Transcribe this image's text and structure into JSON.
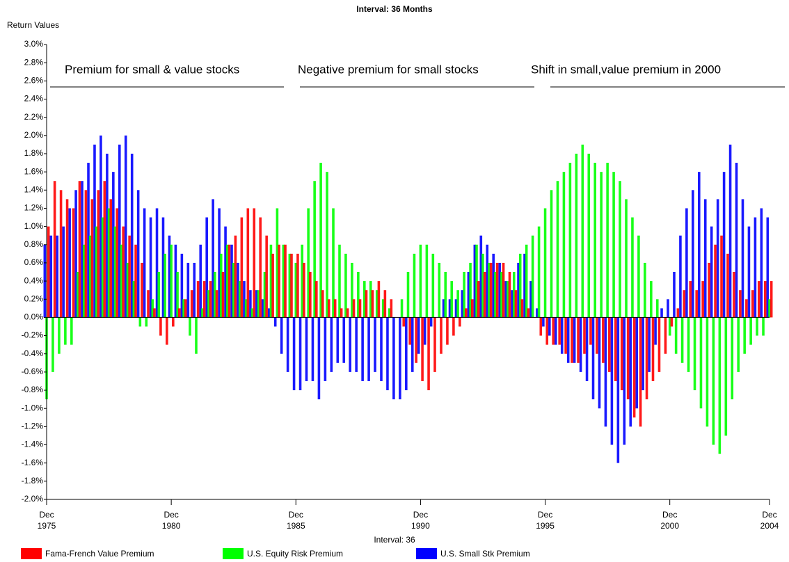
{
  "chart_data": {
    "type": "bar",
    "title": "Interval: 36 Months",
    "ylabel": "Return Values",
    "xlabel": "Interval: 36",
    "annotations": [
      "Premium for small & value stocks",
      "Negative premium for small stocks",
      "Shift in small,value premium in 2000"
    ],
    "x": [
      "1975-12",
      "1976-03",
      "1976-06",
      "1976-09",
      "1976-12",
      "1977-03",
      "1977-06",
      "1977-09",
      "1977-12",
      "1978-03",
      "1978-06",
      "1978-09",
      "1978-12",
      "1979-03",
      "1979-06",
      "1979-09",
      "1979-12",
      "1980-03",
      "1980-06",
      "1980-09",
      "1980-12",
      "1981-03",
      "1981-06",
      "1981-09",
      "1981-12",
      "1982-03",
      "1982-06",
      "1982-09",
      "1982-12",
      "1983-03",
      "1983-06",
      "1983-09",
      "1983-12",
      "1984-03",
      "1984-06",
      "1984-09",
      "1984-12",
      "1985-03",
      "1985-06",
      "1985-09",
      "1985-12",
      "1986-03",
      "1986-06",
      "1986-09",
      "1986-12",
      "1987-03",
      "1987-06",
      "1987-09",
      "1987-12",
      "1988-03",
      "1988-06",
      "1988-09",
      "1988-12",
      "1989-03",
      "1989-06",
      "1989-09",
      "1989-12",
      "1990-03",
      "1990-06",
      "1990-09",
      "1990-12",
      "1991-03",
      "1991-06",
      "1991-09",
      "1991-12",
      "1992-03",
      "1992-06",
      "1992-09",
      "1992-12",
      "1993-03",
      "1993-06",
      "1993-09",
      "1993-12",
      "1994-03",
      "1994-06",
      "1994-09",
      "1994-12",
      "1995-03",
      "1995-06",
      "1995-09",
      "1995-12",
      "1996-03",
      "1996-06",
      "1996-09",
      "1996-12",
      "1997-03",
      "1997-06",
      "1997-09",
      "1997-12",
      "1998-03",
      "1998-06",
      "1998-09",
      "1998-12",
      "1999-03",
      "1999-06",
      "1999-09",
      "1999-12",
      "2000-03",
      "2000-06",
      "2000-09",
      "2000-12",
      "2001-03",
      "2001-06",
      "2001-09",
      "2001-12",
      "2002-03",
      "2002-06",
      "2002-09",
      "2002-12",
      "2003-03",
      "2003-06",
      "2003-09",
      "2003-12",
      "2004-03",
      "2004-06",
      "2004-09",
      "2004-12"
    ],
    "series": [
      {
        "name": "U.S. Small Stk Premium",
        "color": "#0000ff",
        "values": [
          0.8,
          0.9,
          0.9,
          1.0,
          1.2,
          1.4,
          1.5,
          1.7,
          1.9,
          2.0,
          1.8,
          1.6,
          1.9,
          2.0,
          1.8,
          1.4,
          1.2,
          1.1,
          1.2,
          1.1,
          0.9,
          0.8,
          0.7,
          0.6,
          0.6,
          0.8,
          1.1,
          1.3,
          1.2,
          1.0,
          0.8,
          0.6,
          0.4,
          0.3,
          0.3,
          0.2,
          0.1,
          -0.1,
          -0.4,
          -0.6,
          -0.8,
          -0.8,
          -0.7,
          -0.7,
          -0.9,
          -0.7,
          -0.6,
          -0.5,
          -0.5,
          -0.6,
          -0.6,
          -0.7,
          -0.7,
          -0.6,
          -0.7,
          -0.8,
          -0.9,
          -0.9,
          -0.8,
          -0.6,
          -0.4,
          -0.3,
          -0.1,
          0.0,
          0.2,
          0.2,
          0.2,
          0.3,
          0.5,
          0.8,
          0.9,
          0.8,
          0.7,
          0.6,
          0.4,
          0.3,
          0.6,
          0.7,
          0.4,
          0.1,
          -0.1,
          -0.2,
          -0.3,
          -0.4,
          -0.5,
          -0.5,
          -0.6,
          -0.7,
          -0.9,
          -1.0,
          -1.2,
          -1.4,
          -1.6,
          -1.4,
          -1.2,
          -1.0,
          -0.8,
          -0.6,
          -0.3,
          0.1,
          0.2,
          0.5,
          0.9,
          1.2,
          1.4,
          1.6,
          1.3,
          1.0,
          1.3,
          1.6,
          1.9,
          1.7,
          1.3,
          1.0,
          1.1,
          1.2,
          1.1
        ]
      },
      {
        "name": "U.S. Equity Risk Premium",
        "color": "#00ff00",
        "values": [
          -0.9,
          -0.6,
          -0.4,
          -0.3,
          -0.3,
          0.5,
          0.8,
          0.9,
          1.0,
          1.1,
          1.2,
          1.0,
          0.8,
          0.6,
          0.4,
          -0.1,
          -0.1,
          0.2,
          0.5,
          0.7,
          0.8,
          0.5,
          0.2,
          -0.2,
          -0.4,
          0.1,
          0.3,
          0.5,
          0.7,
          0.8,
          0.6,
          0.4,
          0.2,
          0.1,
          0.3,
          0.5,
          0.8,
          1.2,
          0.8,
          0.7,
          0.6,
          0.8,
          1.2,
          1.5,
          1.7,
          1.6,
          1.2,
          0.8,
          0.7,
          0.6,
          0.5,
          0.4,
          0.4,
          0.3,
          0.2,
          0.1,
          0.0,
          0.2,
          0.5,
          0.7,
          0.8,
          0.8,
          0.7,
          0.6,
          0.5,
          0.4,
          0.3,
          0.5,
          0.6,
          0.8,
          0.7,
          0.6,
          0.5,
          0.5,
          0.4,
          0.5,
          0.7,
          0.8,
          0.9,
          1.0,
          1.2,
          1.4,
          1.5,
          1.6,
          1.7,
          1.8,
          1.9,
          1.8,
          1.7,
          1.6,
          1.7,
          1.6,
          1.5,
          1.3,
          1.1,
          0.9,
          0.6,
          0.4,
          0.2,
          0.0,
          -0.2,
          -0.4,
          -0.5,
          -0.6,
          -0.8,
          -1.0,
          -1.2,
          -1.4,
          -1.5,
          -1.3,
          -0.9,
          -0.6,
          -0.4,
          -0.3,
          -0.2,
          -0.2,
          0.2
        ]
      },
      {
        "name": "Fama-French Value Premium",
        "color": "#ff0000",
        "values": [
          1.0,
          1.5,
          1.4,
          1.3,
          1.2,
          1.5,
          1.4,
          1.3,
          1.4,
          1.5,
          1.3,
          1.2,
          1.0,
          0.9,
          0.8,
          0.6,
          0.3,
          0.1,
          -0.2,
          -0.3,
          -0.1,
          0.1,
          0.2,
          0.3,
          0.4,
          0.4,
          0.4,
          0.3,
          0.5,
          0.8,
          0.9,
          1.1,
          1.2,
          1.2,
          1.1,
          0.9,
          0.7,
          0.8,
          0.8,
          0.7,
          0.7,
          0.6,
          0.5,
          0.4,
          0.3,
          0.2,
          0.2,
          0.1,
          0.1,
          0.2,
          0.2,
          0.3,
          0.3,
          0.4,
          0.3,
          0.2,
          0.0,
          -0.1,
          -0.3,
          -0.5,
          -0.7,
          -0.8,
          -0.6,
          -0.4,
          -0.3,
          -0.2,
          -0.1,
          0.1,
          0.2,
          0.4,
          0.5,
          0.6,
          0.6,
          0.6,
          0.5,
          0.3,
          0.2,
          0.1,
          0.0,
          -0.2,
          -0.3,
          -0.3,
          -0.3,
          -0.4,
          -0.5,
          -0.5,
          -0.4,
          -0.3,
          -0.4,
          -0.5,
          -0.6,
          -0.7,
          -0.8,
          -0.9,
          -1.1,
          -1.2,
          -0.9,
          -0.7,
          -0.6,
          -0.4,
          -0.1,
          0.1,
          0.3,
          0.4,
          0.3,
          0.4,
          0.6,
          0.8,
          0.9,
          0.7,
          0.5,
          0.3,
          0.2,
          0.3,
          0.4,
          0.4,
          0.4
        ]
      }
    ],
    "legend_order": [
      2,
      1,
      0
    ],
    "ylim": [
      -2,
      3
    ],
    "yticks": [
      {
        "value": -2,
        "label": "-2.0%"
      },
      {
        "value": -1.8,
        "label": "-1.8%"
      },
      {
        "value": -1.6,
        "label": "-1.6%"
      },
      {
        "value": -1.4,
        "label": "-1.4%"
      },
      {
        "value": -1.2,
        "label": "-1.2%"
      },
      {
        "value": -1,
        "label": "-1.0%"
      },
      {
        "value": -0.8,
        "label": "-0.8%"
      },
      {
        "value": -0.6,
        "label": "-0.6%"
      },
      {
        "value": -0.4,
        "label": "-0.4%"
      },
      {
        "value": -0.2,
        "label": "-0.2%"
      },
      {
        "value": 0,
        "label": "0.0%"
      },
      {
        "value": 0.2,
        "label": "0.2%"
      },
      {
        "value": 0.4,
        "label": "0.4%"
      },
      {
        "value": 0.6,
        "label": "0.6%"
      },
      {
        "value": 0.8,
        "label": "0.8%"
      },
      {
        "value": 1,
        "label": "1.0%"
      },
      {
        "value": 1.2,
        "label": "1.2%"
      },
      {
        "value": 1.4,
        "label": "1.4%"
      },
      {
        "value": 1.6,
        "label": "1.6%"
      },
      {
        "value": 1.8,
        "label": "1.8%"
      },
      {
        "value": 2,
        "label": "2.0%"
      },
      {
        "value": 2.2,
        "label": "2.2%"
      },
      {
        "value": 2.4,
        "label": "2.4%"
      },
      {
        "value": 2.6,
        "label": "2.6%"
      },
      {
        "value": 2.8,
        "label": "2.8%"
      },
      {
        "value": 3,
        "label": "3.0%"
      }
    ],
    "xlim": [
      "1975-12",
      "2004-12"
    ],
    "xticks": [
      {
        "value": "1975-12",
        "label": [
          "Dec",
          "1975"
        ]
      },
      {
        "value": "1980-12",
        "label": [
          "Dec",
          "1980"
        ]
      },
      {
        "value": "1985-12",
        "label": [
          "Dec",
          "1985"
        ]
      },
      {
        "value": "1990-12",
        "label": [
          "Dec",
          "1990"
        ]
      },
      {
        "value": "1995-12",
        "label": [
          "Dec",
          "1995"
        ]
      },
      {
        "value": "2000-12",
        "label": [
          "Dec",
          "2000"
        ]
      },
      {
        "value": "2004-12",
        "label": [
          "Dec",
          "2004"
        ]
      }
    ]
  }
}
